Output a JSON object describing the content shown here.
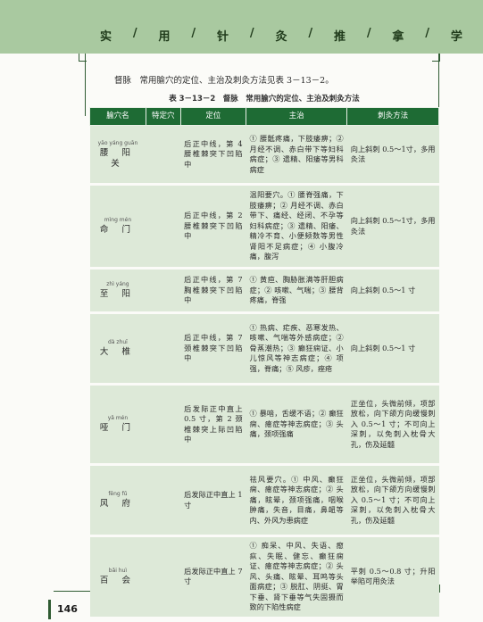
{
  "header": {
    "title_chars": [
      "实",
      "/",
      "用",
      "/",
      "针",
      "/",
      "灸",
      "/",
      "推",
      "/",
      "拿",
      "/",
      "学"
    ]
  },
  "intro": "督脉　常用腧穴的定位、主治及刺灸方法见表 3－13－2。",
  "caption": "表 3－13－2　督脉　常用腧穴的定位、主治及刺灸方法",
  "table": {
    "headers": [
      "腧穴名",
      "特定穴",
      "定位",
      "主治",
      "刺灸方法"
    ],
    "rows": [
      {
        "pinyin": "yāo yáng guān",
        "name": "腰 阳 关",
        "special": "",
        "location": "后正中线，第 4 腰椎棘突下凹陷中",
        "indications": "① 腰骶疼痛，下肢痿痹；② 月经不调、赤白带下等妇科病症；③ 遗精、阳痿等男科病症",
        "technique": "向上斜刺 0.5～1寸，多用灸法"
      },
      {
        "pinyin": "mìng mén",
        "name": "命 门",
        "special": "",
        "location": "后正中线，第 2 腰椎棘突下凹陷中",
        "indications": "温阳要穴。① 腰脊强痛，下肢痿痹；② 月经不调、赤白带下、痛经、经闭、不孕等妇科病症；③ 遗精、阳痿、精冷不育、小便频数等男性肾阳不足病症；④ 小腹冷痛，腹泻",
        "technique": "向上斜刺 0.5～1寸，多用灸法"
      },
      {
        "pinyin": "zhì yáng",
        "name": "至 阳",
        "special": "",
        "location": "后正中线，第 7 胸椎棘突下凹陷中",
        "indications": "① 黄疸、胸胁胀满等肝胆病症；② 咳嗽、气喘；③ 腰背疼痛，脊强",
        "technique": "向上斜刺 0.5～1 寸"
      },
      {
        "pinyin": "dà zhuī",
        "name": "大 椎",
        "special": "",
        "location": "后正中线，第 7 颈椎棘突下凹陷中",
        "indications": "① 热病、疟疾、恶寒发热、咳嗽、气喘等外感病症；② 骨蒸潮热；③ 癫狂痫证、小儿惊风等神志病症；④ 项强，脊痛；⑤ 风疹，痤疮",
        "technique": "向上斜刺 0.5～1 寸"
      },
      {
        "pinyin": "yǎ mén",
        "name": "哑 门",
        "special": "",
        "location": "后发际正中直上 0.5 寸，第 2 颈椎棘突上际凹陷中",
        "indications": "① 暴喑，舌缓不语；② 癫狂痫、癔症等神志病症；③ 头痛，颈项强痛",
        "technique": "正坐位，头微前倾，项部放松，向下颌方向缓慢刺入 0.5～1 寸；不可向上深刺，以免刺入枕骨大孔，伤及延髓"
      },
      {
        "pinyin": "fēng fǔ",
        "name": "风 府",
        "special": "",
        "location": "后发际正中直上 1 寸",
        "indications": "祛风要穴。① 中风、癫狂痫、癔症等神志病症；② 头痛，眩晕，颈项强痛，咽喉肿痛，失音，目痛，鼻衄等内、外风为患病症",
        "technique": "正坐位，头微前倾，项部放松，向下颌方向缓慢刺入 0.5～1 寸；不可向上深刺，以免刺入枕骨大孔，伤及延髓"
      },
      {
        "pinyin": "bǎi huì",
        "name": "百 会",
        "special": "",
        "location": "后发际正中直上 7 寸",
        "indications": "① 痴呆、中风、失语、瘛疭、失眠、健忘、癫狂痫证、癔症等神志病症；② 头风、头痛、眩晕、耳鸣等头面病症；③ 脱肛、阴挺、胃下垂、肾下垂等气失固摄而致的下陷性病症",
        "technique": "平刺 0.5～0.8 寸；升阳举陷可用灸法"
      }
    ]
  },
  "page_number": "146"
}
